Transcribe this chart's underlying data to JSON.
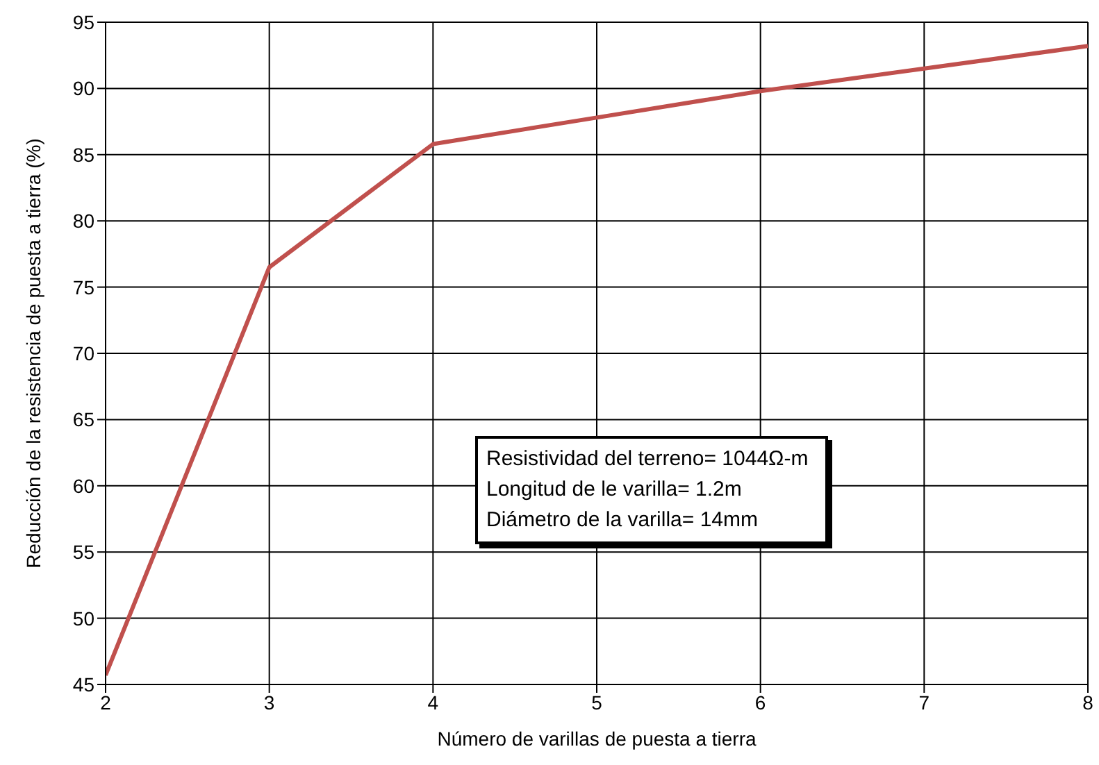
{
  "chart_data": {
    "type": "line",
    "xlabel": "Número de varillas de puesta a tierra",
    "ylabel": "Reducción de la resistencia de puesta a tierra (%)",
    "x": [
      2,
      3,
      4,
      5,
      6,
      7,
      8
    ],
    "series": [
      {
        "color": "#c0504d",
        "values": [
          45.7,
          76.5,
          85.8,
          87.8,
          89.8,
          91.5,
          93.2
        ]
      }
    ],
    "xlim": [
      2,
      8
    ],
    "xticks": [
      2,
      3,
      4,
      5,
      6,
      7,
      8
    ],
    "ylim": [
      45,
      95
    ],
    "yticks": [
      45,
      50,
      55,
      60,
      65,
      70,
      75,
      80,
      85,
      90,
      95
    ],
    "grid": true,
    "marker": "none",
    "line_style": "solid",
    "annotations": [
      "Resistividad del terreno= 1044Ω-m",
      "Longitud de le varilla= 1.2m",
      "Diámetro de la varilla= 14mm"
    ]
  }
}
